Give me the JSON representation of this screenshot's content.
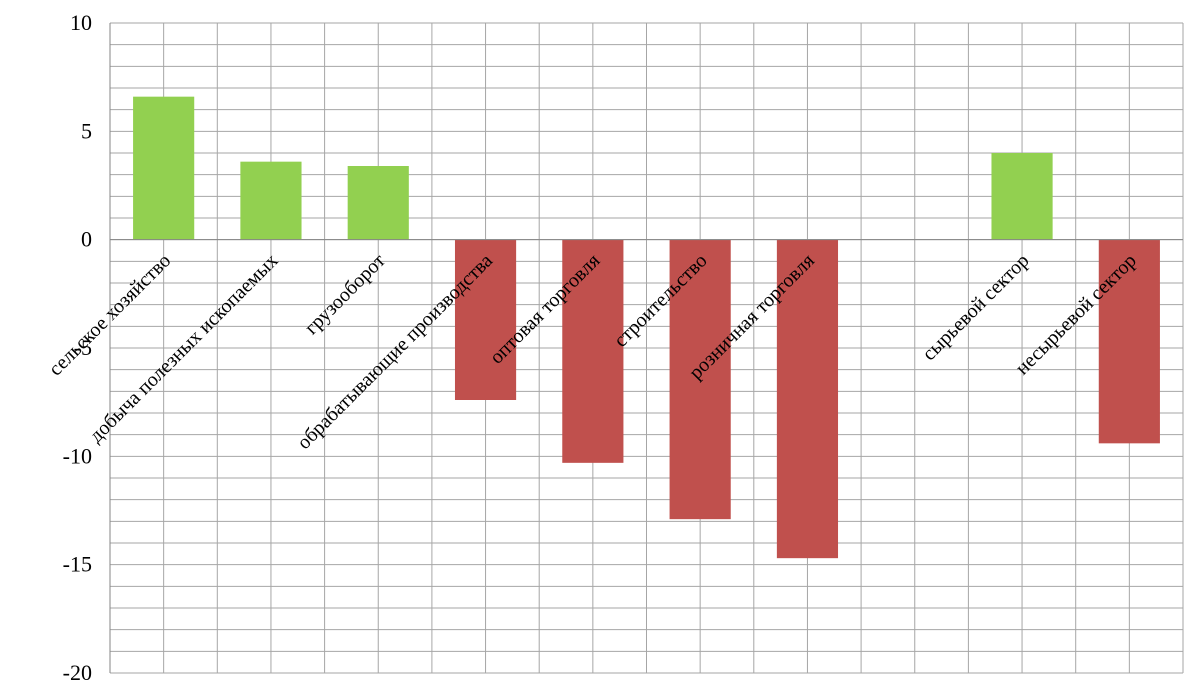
{
  "chart_data": {
    "type": "bar",
    "title": "",
    "xlabel": "",
    "ylabel": "",
    "ylim": [
      -20,
      10
    ],
    "y_ticks": [
      "10",
      "5",
      "0",
      "-5",
      "-10",
      "-15",
      "-20"
    ],
    "y_tick_values": [
      10,
      5,
      0,
      -5,
      -10,
      -15,
      -20
    ],
    "grid": true,
    "categories": [
      "сельское хозяйство",
      "добыча полезных ископаемых",
      "грузооборот",
      "обрабатывающие производства",
      "оптовая торговля",
      "строительство",
      "розничная торговля",
      "",
      "сырьевой сектор",
      "несырьевой сектор"
    ],
    "values": [
      6.6,
      3.6,
      3.4,
      -7.4,
      -10.3,
      -12.9,
      -14.7,
      null,
      4.0,
      -9.4
    ],
    "colors": {
      "positive": "#92d050",
      "negative": "#c0504d"
    }
  }
}
